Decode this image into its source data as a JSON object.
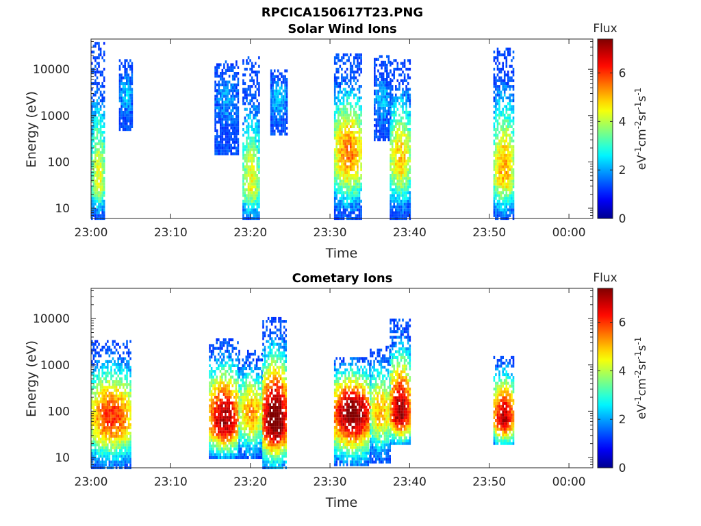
{
  "figure_title": "RPCICA150617T23.PNG",
  "colormap": {
    "name": "jet",
    "stops": [
      "#00008f",
      "#0000ff",
      "#00ffff",
      "#ffff00",
      "#ff0000",
      "#800000"
    ]
  },
  "chart_data": [
    {
      "type": "heatmap",
      "title": "Solar Wind Ions",
      "xlabel": "Time",
      "ylabel": "Energy (eV)",
      "x_tick_labels": [
        "23:00",
        "23:10",
        "23:20",
        "23:30",
        "23:40",
        "23:50",
        "00:00"
      ],
      "x_tick_minutes": [
        0,
        10,
        20,
        30,
        40,
        50,
        60
      ],
      "xlim_minutes": [
        0,
        63
      ],
      "y_scale": "log",
      "y_tick_labels": [
        "10",
        "100",
        "1000",
        "10000"
      ],
      "y_tick_values": [
        10,
        100,
        1000,
        10000
      ],
      "ylim": [
        6,
        45000
      ],
      "colorbar": {
        "title": "Flux",
        "label": "eV-1cm-2sr-1s-1",
        "range": [
          0,
          7.4
        ],
        "tick_labels": [
          "0",
          "2",
          "4",
          "6"
        ],
        "tick_values": [
          0,
          2,
          4,
          6
        ]
      },
      "bursts": [
        {
          "start_min": 0.0,
          "end_min": 1.7,
          "peak_energy_ev": 40,
          "peak_flux": 3.8,
          "max_energy_ev": 40000,
          "min_energy_ev": 6
        },
        {
          "start_min": 3.5,
          "end_min": 5.2,
          "peak_energy_ev": 3000,
          "peak_flux": 1.9,
          "max_energy_ev": 16000,
          "min_energy_ev": 500
        },
        {
          "start_min": 15.5,
          "end_min": 18.5,
          "peak_energy_ev": 2500,
          "peak_flux": 1.7,
          "max_energy_ev": 15000,
          "min_energy_ev": 150
        },
        {
          "start_min": 19.0,
          "end_min": 21.0,
          "peak_energy_ev": 30,
          "peak_flux": 3.9,
          "max_energy_ev": 19000,
          "min_energy_ev": 6
        },
        {
          "start_min": 22.5,
          "end_min": 24.5,
          "peak_energy_ev": 2500,
          "peak_flux": 2.0,
          "max_energy_ev": 10000,
          "min_energy_ev": 400
        },
        {
          "start_min": 30.5,
          "end_min": 34.0,
          "peak_energy_ev": 150,
          "peak_flux": 4.8,
          "max_energy_ev": 21000,
          "min_energy_ev": 6
        },
        {
          "start_min": 35.5,
          "end_min": 37.5,
          "peak_energy_ev": 2000,
          "peak_flux": 1.9,
          "max_energy_ev": 20000,
          "min_energy_ev": 300
        },
        {
          "start_min": 37.5,
          "end_min": 40.0,
          "peak_energy_ev": 120,
          "peak_flux": 4.3,
          "max_energy_ev": 16000,
          "min_energy_ev": 6
        },
        {
          "start_min": 50.5,
          "end_min": 53.0,
          "peak_energy_ev": 60,
          "peak_flux": 4.5,
          "max_energy_ev": 30000,
          "min_energy_ev": 6
        }
      ]
    },
    {
      "type": "heatmap",
      "title": "Cometary Ions",
      "xlabel": "Time",
      "ylabel": "Energy (eV)",
      "x_tick_labels": [
        "23:00",
        "23:10",
        "23:20",
        "23:30",
        "23:40",
        "23:50",
        "00:00"
      ],
      "x_tick_minutes": [
        0,
        10,
        20,
        30,
        40,
        50,
        60
      ],
      "xlim_minutes": [
        0,
        63
      ],
      "y_scale": "log",
      "y_tick_labels": [
        "10",
        "100",
        "1000",
        "10000"
      ],
      "y_tick_values": [
        10,
        100,
        1000,
        10000
      ],
      "ylim": [
        6,
        45000
      ],
      "colorbar": {
        "title": "Flux",
        "label": "eV-1cm-2sr-1s-1",
        "range": [
          0,
          7.4
        ],
        "tick_labels": [
          "0",
          "2",
          "4",
          "6"
        ],
        "tick_values": [
          0,
          2,
          4,
          6
        ]
      },
      "bursts": [
        {
          "start_min": 0.0,
          "end_min": 5.0,
          "peak_energy_ev": 70,
          "peak_flux": 5.3,
          "max_energy_ev": 3500,
          "min_energy_ev": 6
        },
        {
          "start_min": 14.8,
          "end_min": 18.5,
          "peak_energy_ev": 60,
          "peak_flux": 6.2,
          "max_energy_ev": 4000,
          "min_energy_ev": 10
        },
        {
          "start_min": 18.5,
          "end_min": 21.5,
          "peak_energy_ev": 90,
          "peak_flux": 4.6,
          "max_energy_ev": 2000,
          "min_energy_ev": 10
        },
        {
          "start_min": 21.5,
          "end_min": 24.5,
          "peak_energy_ev": 60,
          "peak_flux": 6.9,
          "max_energy_ev": 11000,
          "min_energy_ev": 6
        },
        {
          "start_min": 30.5,
          "end_min": 35.0,
          "peak_energy_ev": 90,
          "peak_flux": 6.6,
          "max_energy_ev": 1500,
          "min_energy_ev": 7
        },
        {
          "start_min": 35.0,
          "end_min": 37.5,
          "peak_energy_ev": 100,
          "peak_flux": 4.5,
          "max_energy_ev": 2500,
          "min_energy_ev": 8
        },
        {
          "start_min": 37.5,
          "end_min": 40.0,
          "peak_energy_ev": 90,
          "peak_flux": 6.3,
          "max_energy_ev": 10000,
          "min_energy_ev": 20
        },
        {
          "start_min": 50.5,
          "end_min": 53.0,
          "peak_energy_ev": 70,
          "peak_flux": 6.0,
          "max_energy_ev": 1500,
          "min_energy_ev": 20
        }
      ]
    }
  ]
}
